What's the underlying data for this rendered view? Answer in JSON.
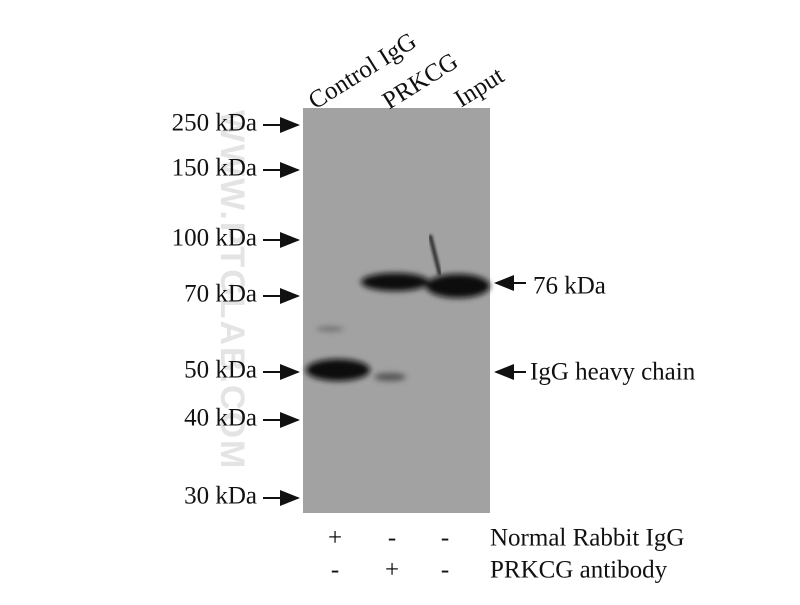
{
  "lanes": [
    "Control IgG",
    "PRKCG",
    "Input"
  ],
  "markers": [
    "250 kDa",
    "150 kDa",
    "100 kDa",
    "70 kDa",
    "50 kDa",
    "40 kDa",
    "30 kDa"
  ],
  "annotations": [
    "76 kDa",
    "IgG heavy chain"
  ],
  "conditions": [
    {
      "label": "Normal Rabbit IgG",
      "signs": [
        "+",
        "-",
        "-"
      ]
    },
    {
      "label": "PRKCG antibody",
      "signs": [
        "-",
        "+",
        "-"
      ]
    }
  ],
  "watermark": "WWW.PTGLAB.COM"
}
